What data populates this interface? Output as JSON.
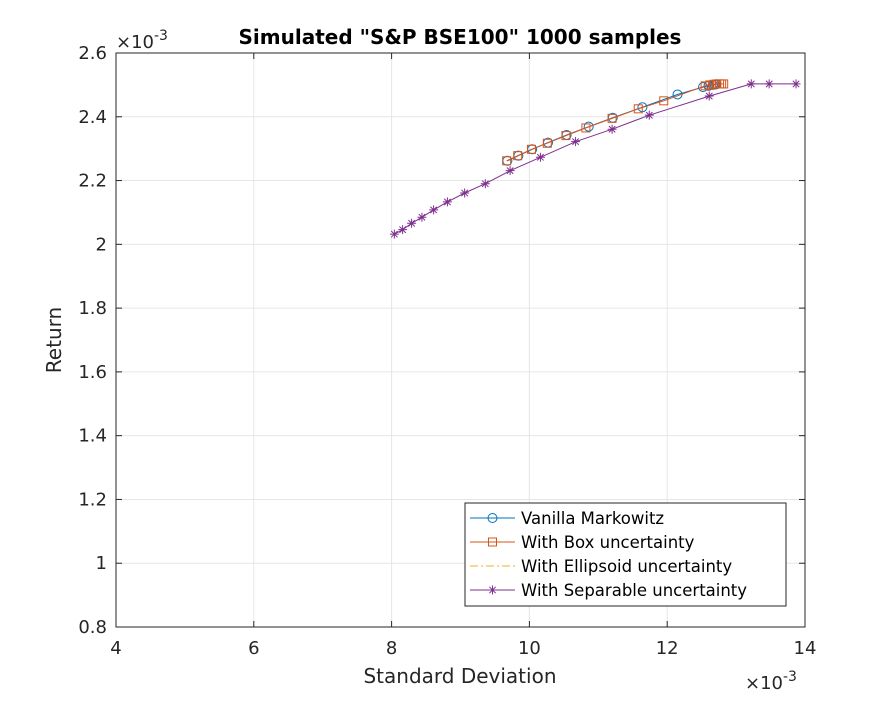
{
  "chart_data": {
    "type": "line",
    "title": "Simulated \"S&P BSE100\" 1000 samples",
    "xlabel": "Standard Deviation",
    "ylabel": "Return",
    "x_exponent_label": "×10",
    "x_exponent_power": "-3",
    "y_exponent_label": "×10",
    "y_exponent_power": "-3",
    "xlim": [
      4,
      14
    ],
    "ylim": [
      0.8,
      2.6
    ],
    "x_ticks": [
      "4",
      "6",
      "8",
      "10",
      "12",
      "14"
    ],
    "y_ticks": [
      "0.8",
      "1",
      "1.2",
      "1.4",
      "1.6",
      "1.8",
      "2",
      "2.2",
      "2.4",
      "2.6"
    ],
    "x_tick_values": [
      4,
      6,
      8,
      10,
      12,
      14
    ],
    "y_tick_values": [
      0.8,
      1.0,
      1.2,
      1.4,
      1.6,
      1.8,
      2.0,
      2.2,
      2.4,
      2.6
    ],
    "grid": true,
    "legend_position": "bottom-right",
    "series": [
      {
        "name": "Vanilla Markowitz",
        "color": "#0072BD",
        "marker": "circle",
        "line_style": "solid",
        "x": [
          9.68,
          9.84,
          10.04,
          10.27,
          10.54,
          10.86,
          11.21,
          11.64,
          12.15,
          12.52,
          12.6,
          12.66,
          12.69,
          12.71
        ],
        "y": [
          2.262,
          2.278,
          2.298,
          2.319,
          2.343,
          2.369,
          2.397,
          2.43,
          2.47,
          2.493,
          2.497,
          2.5,
          2.501,
          2.502
        ]
      },
      {
        "name": "With Box uncertainty",
        "color": "#D95319",
        "marker": "square",
        "line_style": "solid",
        "x": [
          9.67,
          9.83,
          10.03,
          10.26,
          10.53,
          10.82,
          11.2,
          11.58,
          11.95,
          12.55,
          12.62,
          12.68,
          12.72,
          12.76,
          12.79,
          12.82
        ],
        "y": [
          2.262,
          2.278,
          2.298,
          2.317,
          2.341,
          2.365,
          2.395,
          2.425,
          2.45,
          2.497,
          2.5,
          2.502,
          2.503,
          2.503,
          2.503,
          2.503
        ]
      },
      {
        "name": "With Ellipsoid uncertainty",
        "color": "#EDB120",
        "marker": "none",
        "line_style": "dashdot",
        "x": [],
        "y": []
      },
      {
        "name": "With Separable uncertainty",
        "color": "#7E2F8E",
        "marker": "asterisk",
        "line_style": "solid",
        "x": [
          8.04,
          8.16,
          8.29,
          8.44,
          8.61,
          8.81,
          9.06,
          9.36,
          9.72,
          10.16,
          10.67,
          11.2,
          11.74,
          12.61,
          13.22,
          13.48,
          13.87
        ],
        "y": [
          2.032,
          2.046,
          2.066,
          2.085,
          2.108,
          2.133,
          2.161,
          2.19,
          2.231,
          2.273,
          2.322,
          2.361,
          2.405,
          2.465,
          2.503,
          2.503,
          2.503
        ]
      }
    ]
  }
}
